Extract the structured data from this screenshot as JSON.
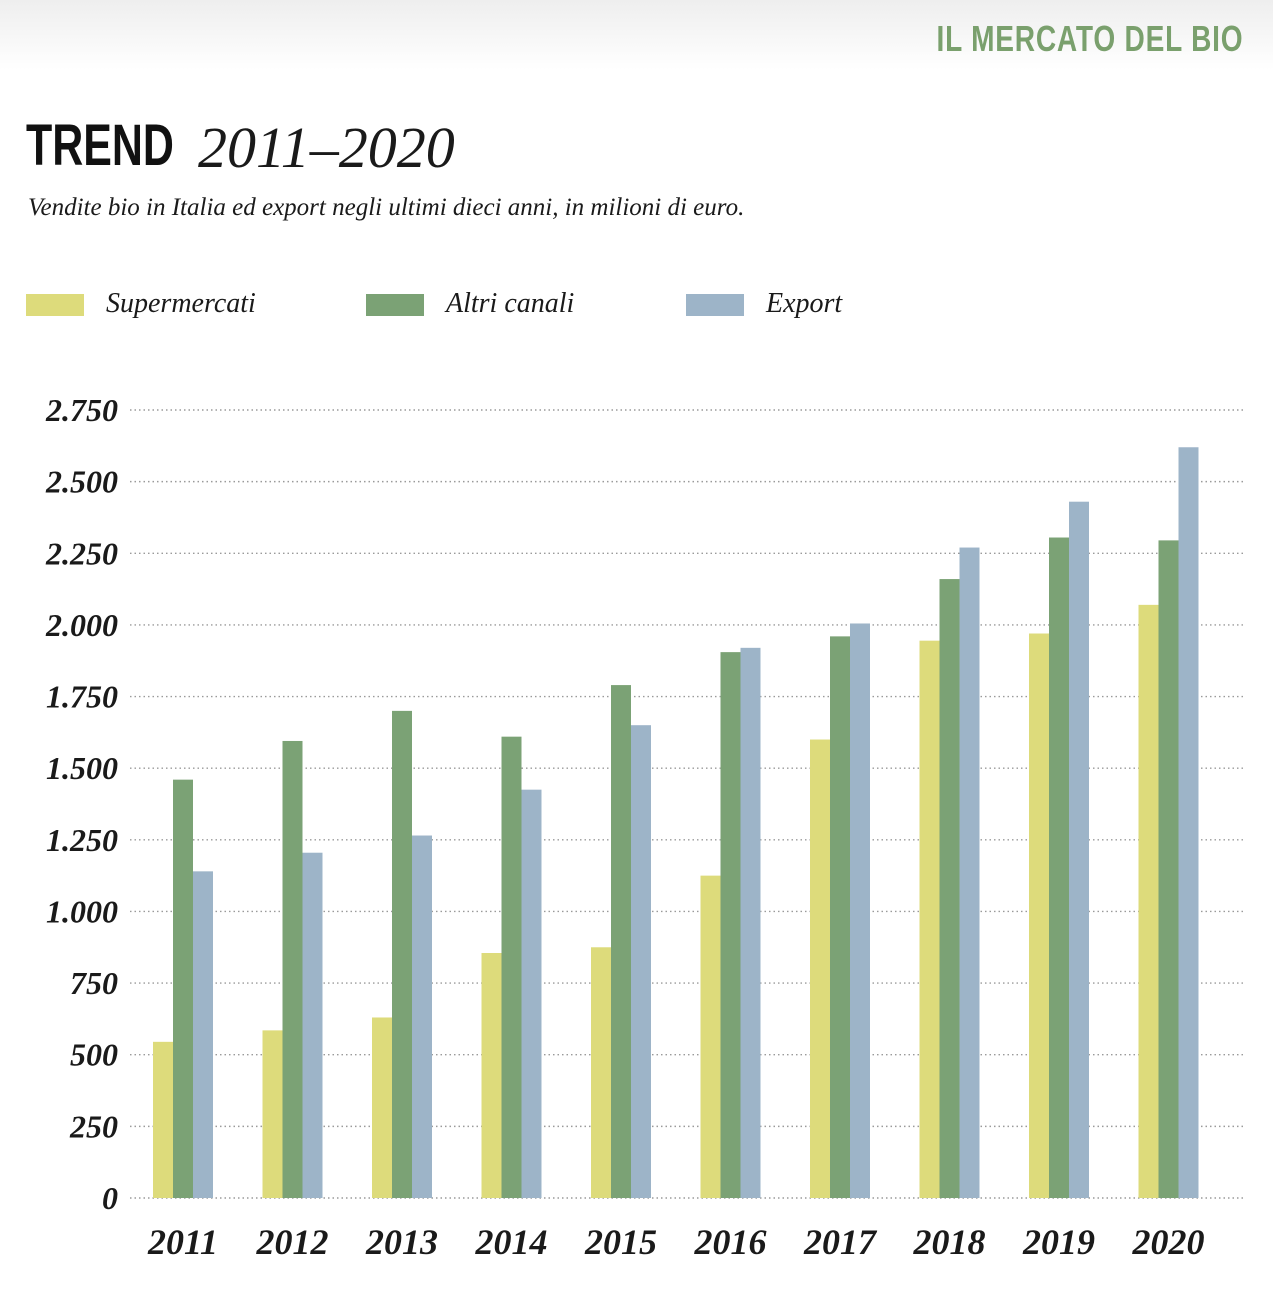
{
  "header": {
    "section_label": "IL MERCATO DEL BIO",
    "title_main": "TREND",
    "title_range": "2011–2020",
    "subtitle": "Vendite bio in Italia ed export negli ultimi dieci anni, in milioni di euro."
  },
  "chart_data": {
    "type": "bar",
    "title": "TREND 2011–2020",
    "subtitle": "Vendite bio in Italia ed export negli ultimi dieci anni, in milioni di euro.",
    "xlabel": "",
    "ylabel": "",
    "categories": [
      "2011",
      "2012",
      "2013",
      "2014",
      "2015",
      "2016",
      "2017",
      "2018",
      "2019",
      "2020"
    ],
    "series": [
      {
        "name": "Supermercati",
        "color": "#dddb7b",
        "values": [
          545,
          585,
          630,
          855,
          875,
          1125,
          1600,
          1945,
          1970,
          2070
        ]
      },
      {
        "name": "Altri canali",
        "color": "#7ba275",
        "values": [
          1460,
          1595,
          1700,
          1610,
          1790,
          1905,
          1960,
          2160,
          2305,
          2295
        ]
      },
      {
        "name": "Export",
        "color": "#9db4c8",
        "values": [
          1140,
          1205,
          1265,
          1425,
          1650,
          1920,
          2005,
          2270,
          2430,
          2620
        ]
      }
    ],
    "ylim": [
      0,
      2750
    ],
    "yticks": [
      0,
      250,
      500,
      750,
      1000,
      1250,
      1500,
      1750,
      2000,
      2250,
      2500,
      2750
    ],
    "ytick_labels": [
      "0",
      "250",
      "500",
      "750",
      "1.000",
      "1.250",
      "1.500",
      "1.750",
      "2.000",
      "2.250",
      "2.500",
      "2.750"
    ],
    "grid": true,
    "legend": "top"
  }
}
